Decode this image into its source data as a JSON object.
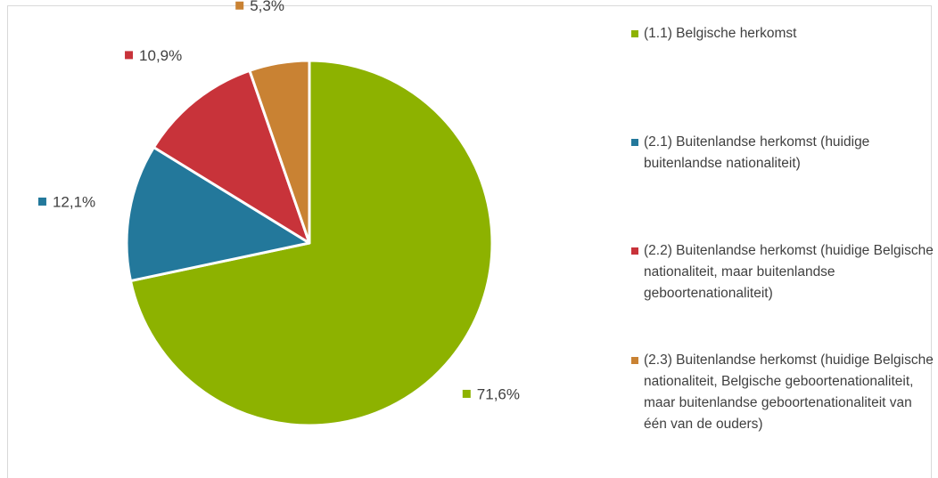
{
  "chart_data": {
    "type": "pie",
    "categories": [
      "(1.1) Belgische herkomst",
      "(2.1) Buitenlandse herkomst (huidige buitenlandse nationaliteit)",
      "(2.2) Buitenlandse herkomst (huidige Belgische nationaliteit, maar buitenlandse geboortenationaliteit)",
      "(2.3) Buitenlandse herkomst (huidige Belgische nationaliteit, Belgische geboortenationaliteit, maar buitenlandse geboortenationaliteit van één van de ouders)"
    ],
    "values": [
      71.6,
      12.1,
      10.9,
      5.3
    ],
    "value_labels": [
      "71,6%",
      "12,1%",
      "10,9%",
      "5,3%"
    ],
    "colors": [
      "#8db200",
      "#23789b",
      "#c8333a",
      "#c98233"
    ],
    "legend": "right"
  }
}
